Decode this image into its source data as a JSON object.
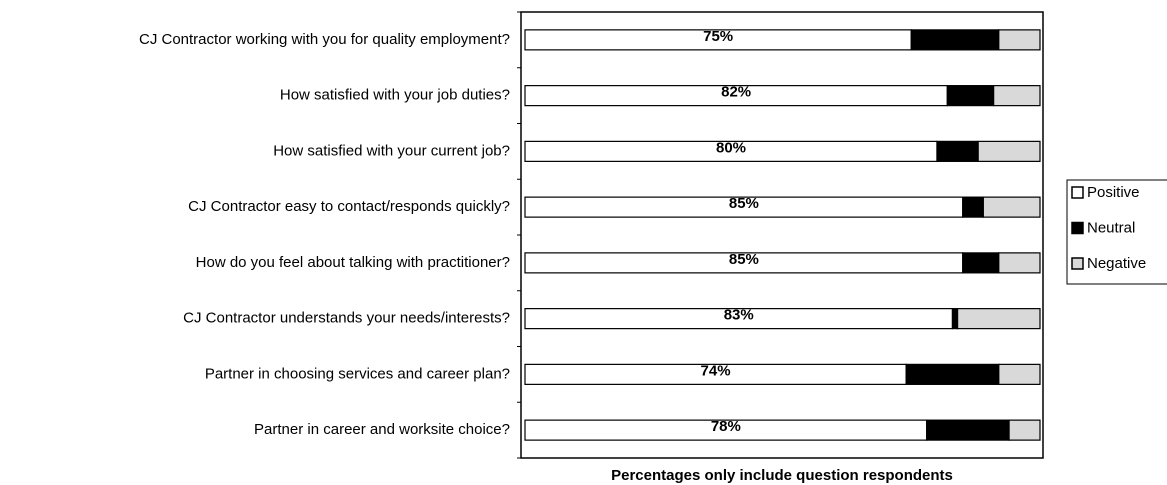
{
  "chart_data": {
    "type": "stacked-bar-horizontal",
    "x_label": "Percentages only include question respondents",
    "categories": [
      "CJ Contractor working with you for quality employment?",
      "How satisfied with your job duties?",
      "How satisfied with your current job?",
      "CJ Contractor easy to contact/responds quickly?",
      "How do you feel about talking with practitioner?",
      "CJ Contractor understands your needs/interests?",
      "Partner in choosing services and career plan?",
      "Partner in career and worksite choice?"
    ],
    "series": [
      {
        "name": "Positive",
        "color": "#ffffff",
        "values": [
          75,
          82,
          80,
          85,
          85,
          83,
          74,
          78
        ],
        "value_labels": [
          "75%",
          "82%",
          "80%",
          "85%",
          "85%",
          "83%",
          "74%",
          "78%"
        ]
      },
      {
        "name": "Neutral",
        "color": "#000000",
        "values": [
          17,
          9,
          8,
          4,
          7,
          1,
          18,
          16
        ]
      },
      {
        "name": "Negative",
        "color": "#d9d9d9",
        "values": [
          8,
          9,
          12,
          11,
          8,
          16,
          8,
          6
        ]
      }
    ],
    "xlim": [
      0,
      100
    ],
    "legend": "right"
  }
}
